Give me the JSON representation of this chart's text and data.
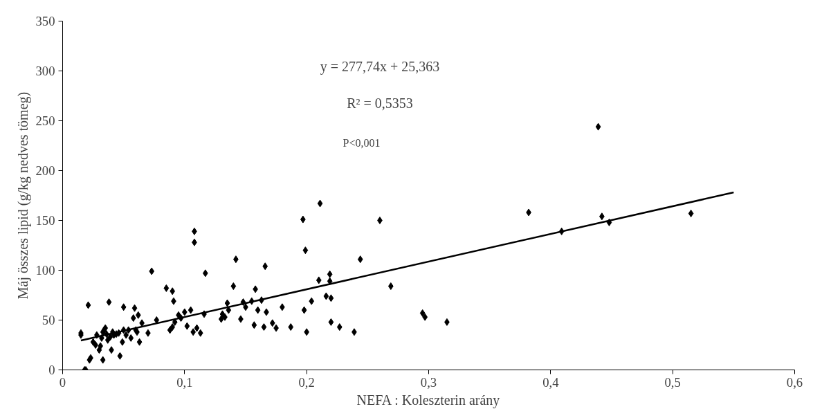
{
  "chart_data": {
    "type": "scatter",
    "xlabel": "NEFA : Koleszterin arány",
    "ylabel": "Máj összes lipid (g/kg nedves tömeg)",
    "annotations": [
      "y = 277,74x + 25,363",
      "R² = 0,5353",
      "P<0,001"
    ],
    "xlim": [
      0,
      0.6
    ],
    "ylim": [
      0,
      350
    ],
    "xticks": [
      0,
      {
        "value": 0.1,
        "label": "0,1"
      },
      {
        "value": 0.2,
        "label": "0,2"
      },
      {
        "value": 0.3,
        "label": "0,3"
      },
      {
        "value": 0.4,
        "label": "0,4"
      },
      {
        "value": 0.5,
        "label": "0,5"
      },
      {
        "value": 0.6,
        "label": "0,6"
      }
    ],
    "yticks": [
      0,
      50,
      100,
      150,
      200,
      250,
      300,
      350
    ],
    "grid": false,
    "series": [
      {
        "marker": "diamond",
        "color": "#000000",
        "x": [
          0.015,
          0.015,
          0.018,
          0.019,
          0.021,
          0.022,
          0.023,
          0.025,
          0.027,
          0.028,
          0.03,
          0.031,
          0.032,
          0.033,
          0.033,
          0.034,
          0.035,
          0.036,
          0.037,
          0.038,
          0.039,
          0.04,
          0.041,
          0.042,
          0.044,
          0.046,
          0.047,
          0.049,
          0.05,
          0.05,
          0.052,
          0.054,
          0.056,
          0.058,
          0.059,
          0.06,
          0.061,
          0.062,
          0.063,
          0.065,
          0.07,
          0.073,
          0.077,
          0.085,
          0.088,
          0.09,
          0.09,
          0.091,
          0.092,
          0.095,
          0.097,
          0.1,
          0.102,
          0.105,
          0.107,
          0.108,
          0.108,
          0.11,
          0.113,
          0.116,
          0.117,
          0.13,
          0.131,
          0.133,
          0.135,
          0.136,
          0.14,
          0.142,
          0.146,
          0.148,
          0.15,
          0.155,
          0.157,
          0.158,
          0.16,
          0.163,
          0.165,
          0.166,
          0.167,
          0.172,
          0.175,
          0.18,
          0.187,
          0.197,
          0.198,
          0.199,
          0.2,
          0.204,
          0.21,
          0.211,
          0.216,
          0.219,
          0.219,
          0.22,
          0.22,
          0.227,
          0.239,
          0.244,
          0.26,
          0.269,
          0.295,
          0.297,
          0.315,
          0.382,
          0.409,
          0.439,
          0.442,
          0.448,
          0.515
        ],
        "values": [
          37,
          35,
          0,
          0,
          65,
          10,
          12,
          28,
          25,
          35,
          20,
          24,
          32,
          10,
          38,
          40,
          42,
          36,
          30,
          68,
          33,
          20,
          38,
          35,
          36,
          37,
          14,
          28,
          63,
          40,
          35,
          40,
          32,
          52,
          62,
          40,
          38,
          55,
          28,
          47,
          37,
          99,
          50,
          82,
          40,
          43,
          79,
          69,
          48,
          55,
          52,
          58,
          44,
          60,
          38,
          139,
          128,
          42,
          37,
          56,
          97,
          51,
          56,
          53,
          67,
          60,
          84,
          111,
          51,
          68,
          63,
          69,
          45,
          81,
          60,
          70,
          43,
          104,
          58,
          47,
          42,
          63,
          43,
          151,
          60,
          120,
          38,
          69,
          90,
          167,
          74,
          89,
          96,
          48,
          72,
          43,
          38,
          111,
          150,
          84,
          57,
          53,
          48,
          158,
          139,
          244,
          154,
          148,
          157
        ]
      },
      {
        "type": "line",
        "line_style": "solid",
        "color": "#000000",
        "x": [
          0.015,
          0.55
        ],
        "values": [
          29.5,
          178.1
        ]
      }
    ]
  }
}
